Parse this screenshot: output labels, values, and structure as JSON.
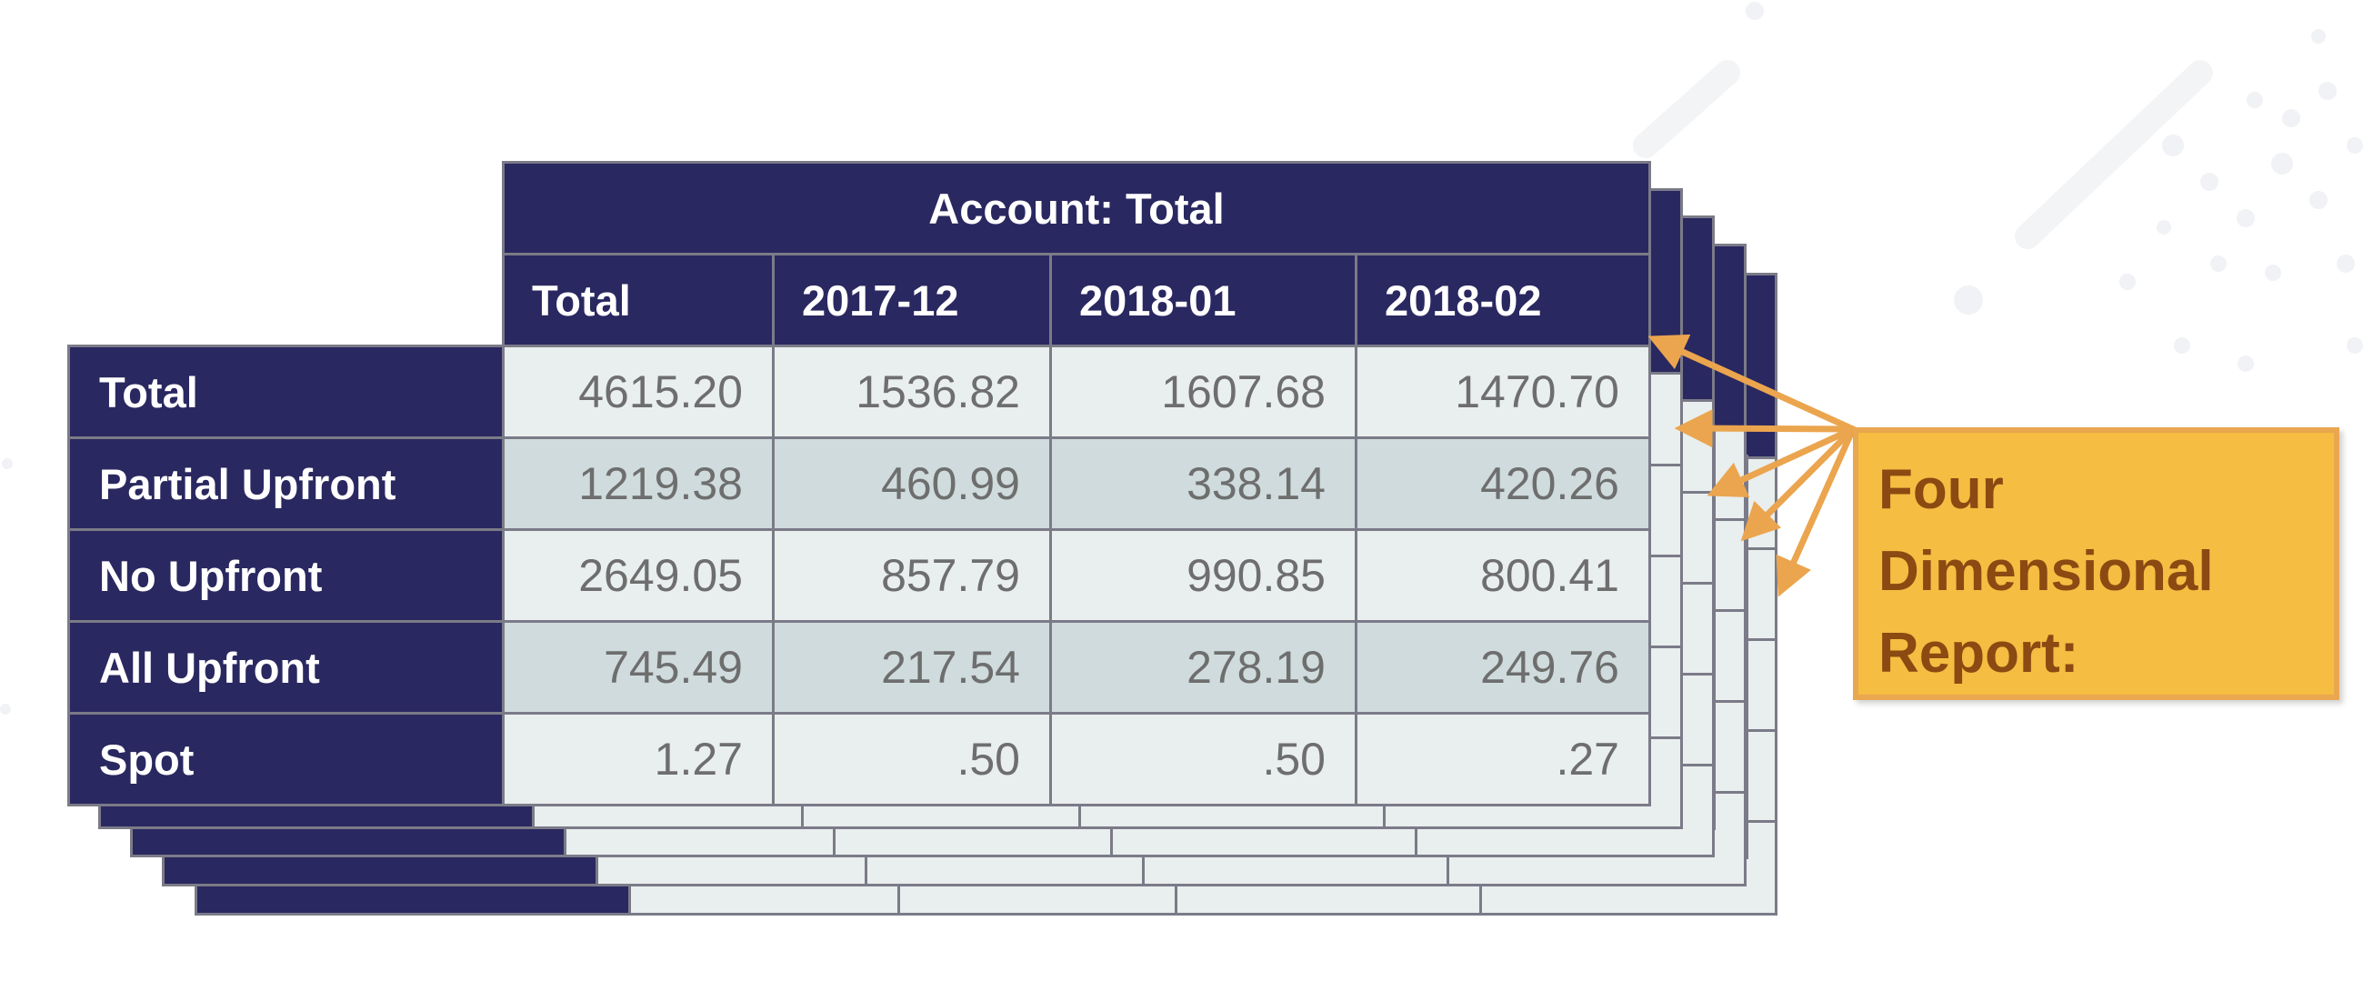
{
  "table": {
    "account_header": "Account: Total",
    "columns": [
      "Total",
      "2017-12",
      "2018-01",
      "2018-02"
    ],
    "rows": [
      {
        "label": "Total",
        "values": [
          "4615.20",
          "1536.82",
          "1607.68",
          "1470.70"
        ]
      },
      {
        "label": "Partial Upfront",
        "values": [
          "1219.38",
          "460.99",
          "338.14",
          "420.26"
        ]
      },
      {
        "label": "No Upfront",
        "values": [
          "2649.05",
          "857.79",
          "990.85",
          "800.41"
        ]
      },
      {
        "label": "All Upfront",
        "values": [
          "745.49",
          "217.54",
          "278.19",
          "249.76"
        ]
      },
      {
        "label": "Spot",
        "values": [
          "1.27",
          ".50",
          ".50",
          ".27"
        ]
      }
    ]
  },
  "annotation": {
    "label": "Four\nDimensional\nReport:"
  },
  "colors": {
    "header_bg": "#2a2860",
    "cell_light": "#e9eeee",
    "cell_dark": "#cfdbdc",
    "grid": "#7b7b88",
    "annotation_bg": "#f5bd42",
    "annotation_border": "#e9a750",
    "annotation_text": "#8a4a12",
    "arrow": "#eba54e"
  },
  "stacked_layer_count": 4
}
